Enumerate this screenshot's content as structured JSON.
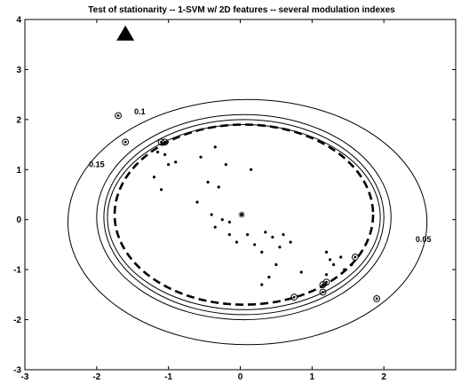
{
  "chart_data": {
    "type": "scatter",
    "title": "Test of stationarity -- 1-SVM w/ 2D features -- several modulation indexes",
    "xlim": [
      -3,
      3
    ],
    "ylim": [
      -3,
      4
    ],
    "x_ticks": [
      -3,
      -2,
      -1,
      0,
      1,
      2
    ],
    "y_ticks": [
      -3,
      -2,
      -1,
      0,
      1,
      2,
      3,
      4
    ],
    "x_tick_labels": [
      "-3",
      "-2",
      "-1",
      "0",
      "1",
      "2"
    ],
    "y_tick_labels": [
      "-3",
      "-2",
      "-1",
      "0",
      "1",
      "2",
      "3",
      "4"
    ],
    "grid": false,
    "colors": {
      "ink": "#000000",
      "background": "#ffffff"
    },
    "marker_triangle": {
      "x": -1.6,
      "y": 3.72
    },
    "center_star": {
      "x": 0.02,
      "y": 0.1
    },
    "contours": [
      {
        "label": "0.05",
        "cx": 0.1,
        "cy": -0.05,
        "rx": 2.5,
        "ry": 2.45,
        "dashed": false,
        "label_at": [
          2.55,
          -0.45
        ]
      },
      {
        "label": "0.1",
        "cx": 0.05,
        "cy": 0.05,
        "rx": 2.05,
        "ry": 2.05,
        "dashed": false,
        "label_at": [
          -1.4,
          2.1
        ]
      },
      {
        "label": "0.15",
        "cx": 0.05,
        "cy": 0.05,
        "rx": 1.95,
        "ry": 1.95,
        "dashed": false,
        "label_at": [
          -2.0,
          1.05
        ]
      },
      {
        "label": "",
        "cx": 0.05,
        "cy": 0.05,
        "rx": 1.9,
        "ry": 1.85,
        "dashed": false,
        "label_at": null
      },
      {
        "label": "",
        "cx": 0.05,
        "cy": 0.1,
        "rx": 1.8,
        "ry": 1.8,
        "dashed": true,
        "label_at": null
      }
    ],
    "points": [
      [
        -1.15,
        1.35
      ],
      [
        -1.05,
        1.3
      ],
      [
        -1.0,
        1.1
      ],
      [
        -0.9,
        1.15
      ],
      [
        -1.2,
        0.85
      ],
      [
        -1.1,
        0.6
      ],
      [
        -0.55,
        1.25
      ],
      [
        -0.35,
        1.45
      ],
      [
        -0.2,
        1.1
      ],
      [
        -0.45,
        0.75
      ],
      [
        -0.3,
        0.65
      ],
      [
        0.15,
        1.0
      ],
      [
        -0.4,
        0.1
      ],
      [
        -0.25,
        0.0
      ],
      [
        -0.15,
        -0.05
      ],
      [
        -0.35,
        -0.15
      ],
      [
        -0.15,
        -0.3
      ],
      [
        -0.05,
        -0.45
      ],
      [
        0.1,
        -0.3
      ],
      [
        0.2,
        -0.5
      ],
      [
        0.35,
        -0.25
      ],
      [
        0.45,
        -0.35
      ],
      [
        0.55,
        -0.55
      ],
      [
        0.3,
        -0.65
      ],
      [
        0.7,
        -0.45
      ],
      [
        0.5,
        -0.9
      ],
      [
        0.85,
        -1.05
      ],
      [
        0.4,
        -1.15
      ],
      [
        1.2,
        -0.65
      ],
      [
        1.25,
        -0.8
      ],
      [
        1.3,
        -0.9
      ],
      [
        1.4,
        -0.75
      ],
      [
        1.45,
        -1.0
      ],
      [
        1.55,
        -0.9
      ],
      [
        1.2,
        -1.1
      ],
      [
        0.3,
        -1.3
      ],
      [
        0.6,
        -0.3
      ],
      [
        -0.6,
        0.35
      ]
    ],
    "support_vectors": [
      [
        -1.7,
        2.08
      ],
      [
        -1.6,
        1.55
      ],
      [
        -1.1,
        1.55
      ],
      [
        -1.05,
        1.55
      ],
      [
        1.6,
        -0.75
      ],
      [
        1.15,
        -1.3
      ],
      [
        1.15,
        -1.45
      ],
      [
        0.75,
        -1.55
      ],
      [
        1.9,
        -1.58
      ],
      [
        1.2,
        -1.25
      ]
    ]
  }
}
